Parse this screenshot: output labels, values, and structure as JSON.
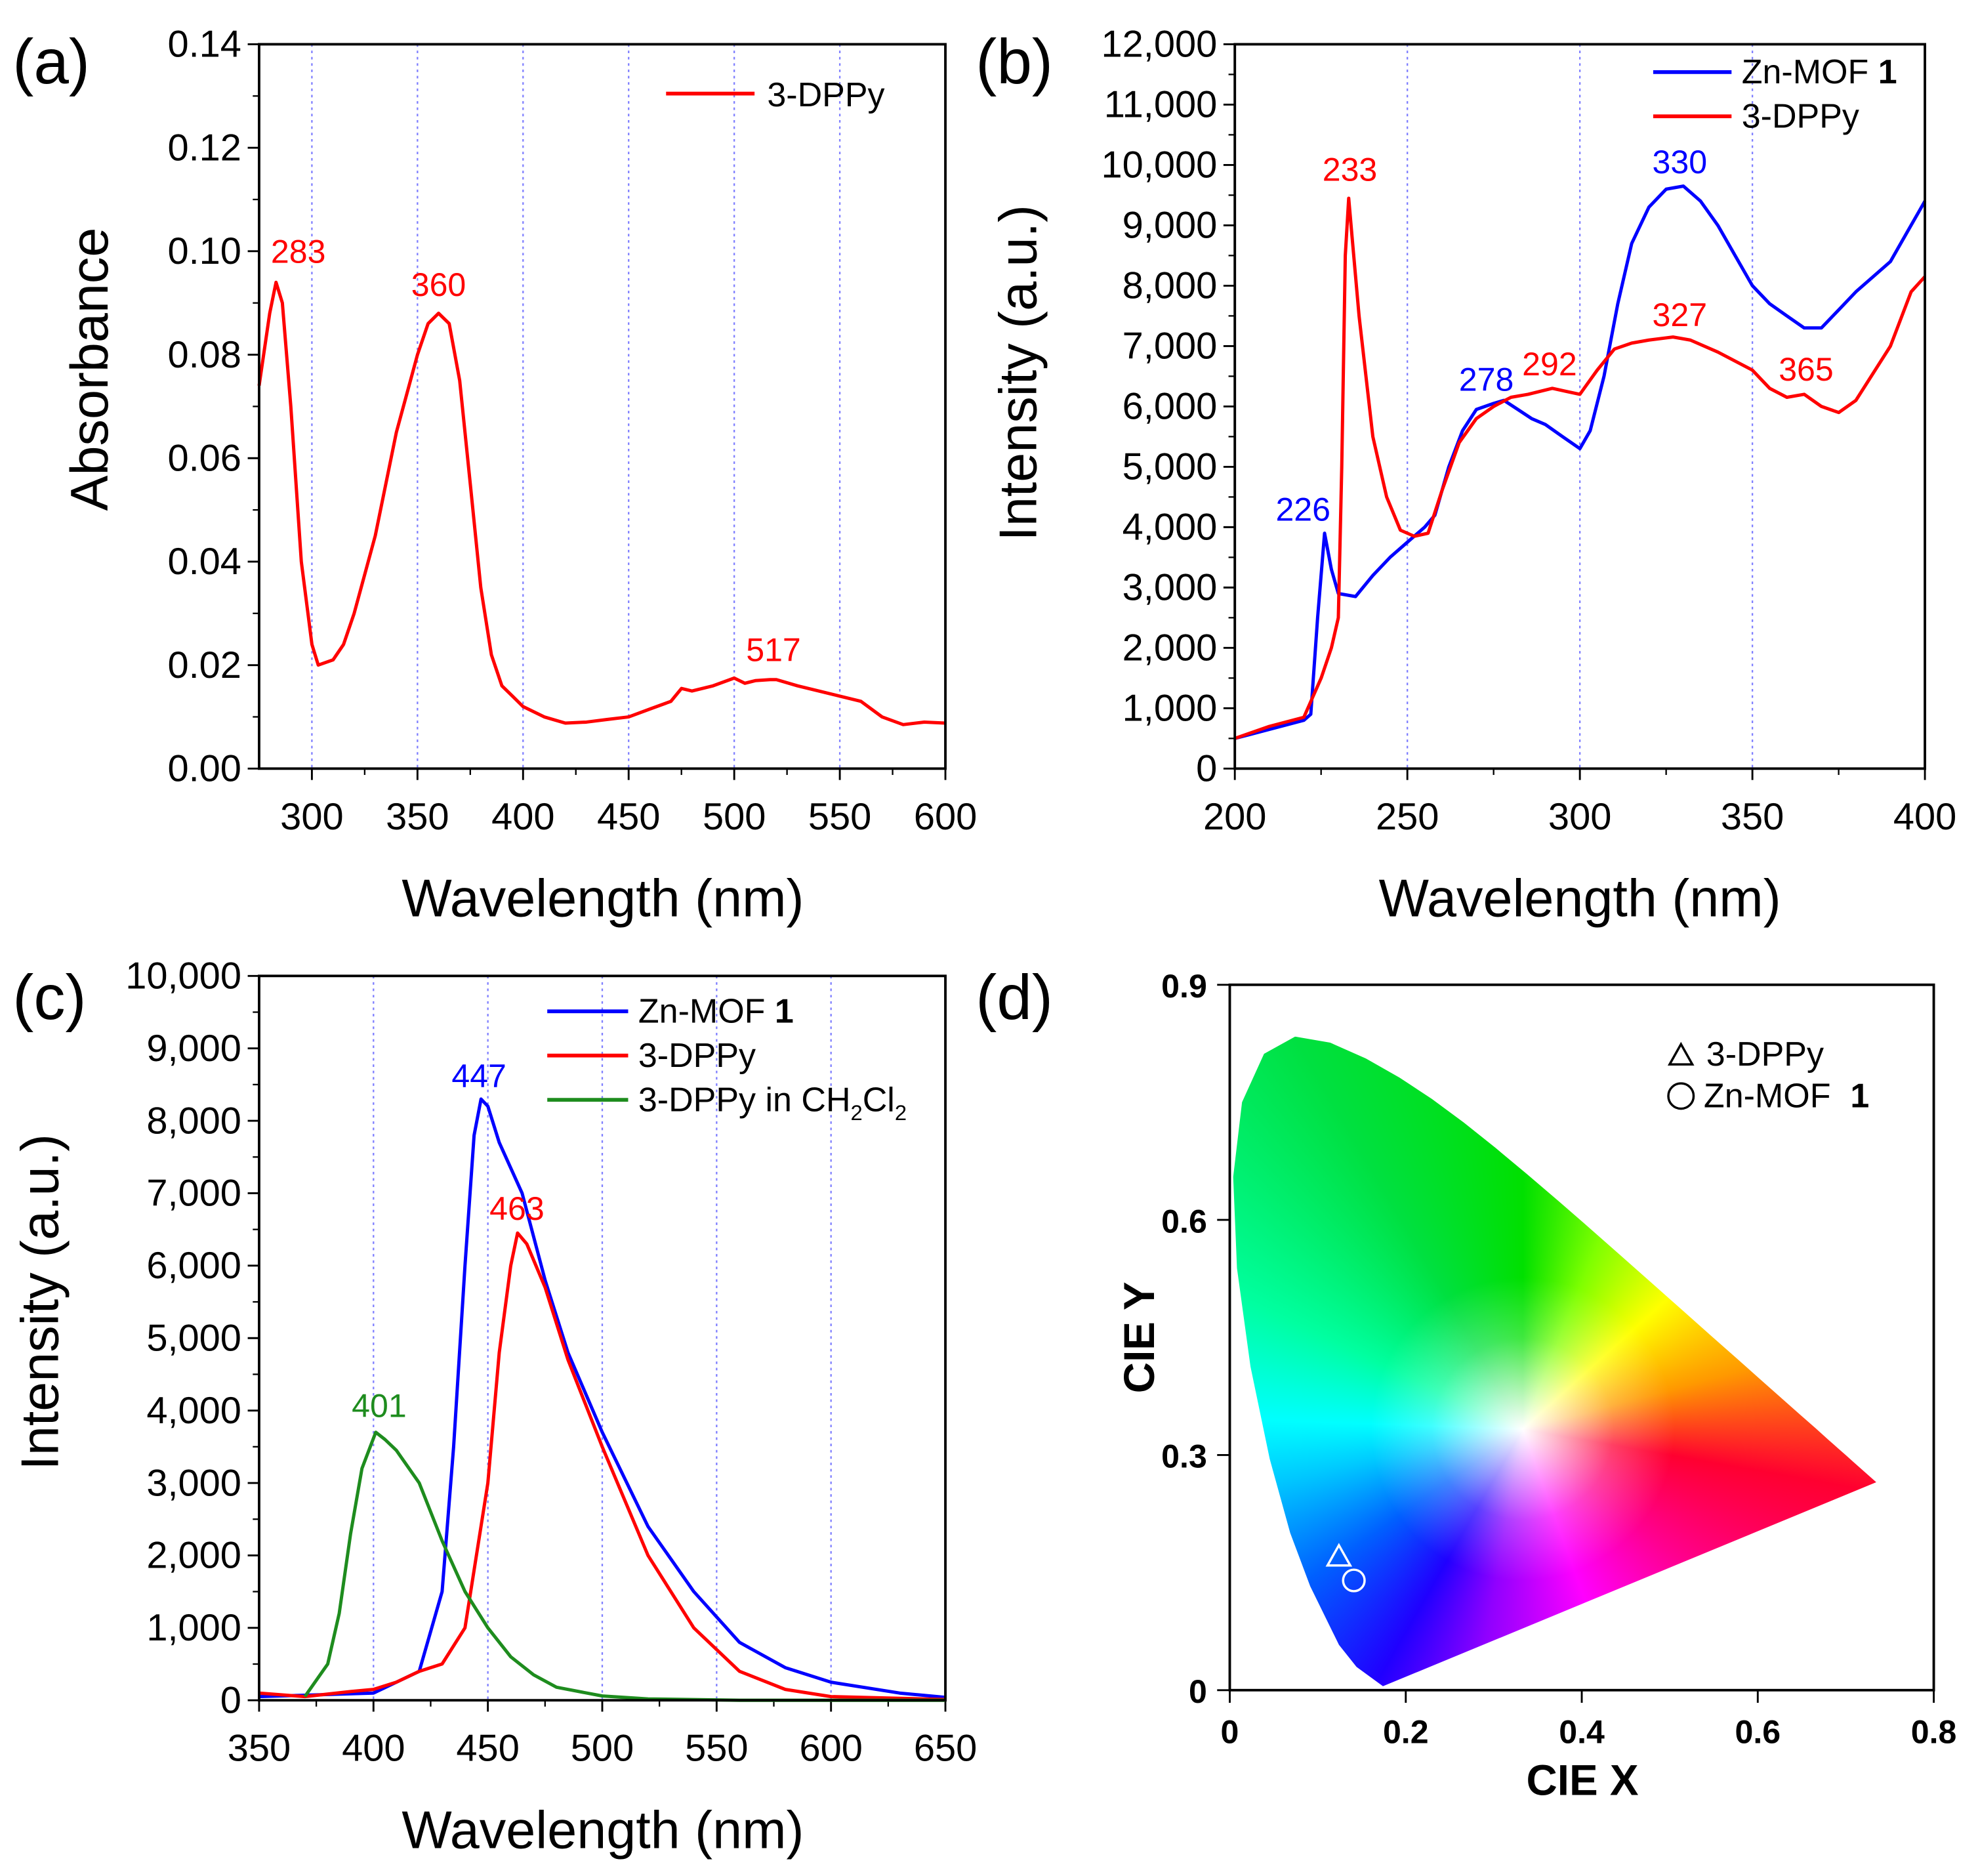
{
  "colors": {
    "red": "#ff0000",
    "blue": "#0000ff",
    "green": "#1e8c1e",
    "grid": "#8080ff"
  },
  "chart_data": [
    {
      "panel": "(a)",
      "type": "line",
      "xlabel": "Wavelength (nm)",
      "ylabel": "Absorbance",
      "xlim": [
        275,
        600
      ],
      "ylim": [
        0,
        0.14
      ],
      "xticks": [
        300,
        350,
        400,
        450,
        500,
        550,
        600
      ],
      "xtick_labels": [
        "300",
        "350",
        "400",
        "450",
        "500",
        "550",
        "600"
      ],
      "yticks": [
        0,
        0.02,
        0.04,
        0.06,
        0.08,
        0.1,
        0.12,
        0.14
      ],
      "ytick_labels": [
        "0.00",
        "0.02",
        "0.04",
        "0.06",
        "0.08",
        "0.10",
        "0.12",
        "0.14"
      ],
      "grid_x": [
        300,
        350,
        400,
        450,
        500,
        550
      ],
      "legend": "top-right",
      "series": [
        {
          "name": "3-DPPy",
          "color": "#ff0000",
          "x": [
            275,
            280,
            283,
            286,
            290,
            295,
            300,
            303,
            310,
            315,
            320,
            330,
            340,
            350,
            355,
            360,
            365,
            370,
            375,
            380,
            385,
            390,
            395,
            400,
            410,
            420,
            430,
            440,
            450,
            460,
            470,
            475,
            480,
            490,
            500,
            505,
            510,
            517,
            520,
            530,
            540,
            550,
            560,
            570,
            580,
            590,
            600
          ],
          "y": [
            0.074,
            0.088,
            0.094,
            0.09,
            0.07,
            0.04,
            0.024,
            0.02,
            0.021,
            0.024,
            0.03,
            0.045,
            0.065,
            0.08,
            0.086,
            0.088,
            0.086,
            0.075,
            0.055,
            0.035,
            0.022,
            0.016,
            0.014,
            0.012,
            0.01,
            0.0088,
            0.009,
            0.0095,
            0.01,
            0.0115,
            0.013,
            0.0155,
            0.015,
            0.016,
            0.0175,
            0.0165,
            0.017,
            0.0172,
            0.0172,
            0.016,
            0.015,
            0.014,
            0.013,
            0.01,
            0.0085,
            0.009,
            0.0088
          ]
        }
      ],
      "annotations": [
        {
          "text": "283",
          "color": "#ff0000"
        },
        {
          "text": "360",
          "color": "#ff0000"
        },
        {
          "text": "517",
          "color": "#ff0000"
        }
      ]
    },
    {
      "panel": "(b)",
      "type": "line",
      "xlabel": "Wavelength (nm)",
      "ylabel": "Intensity (a.u.)",
      "xlim": [
        200,
        400
      ],
      "ylim": [
        0,
        12000
      ],
      "xticks": [
        200,
        250,
        300,
        350,
        400
      ],
      "xtick_labels": [
        "200",
        "250",
        "300",
        "350",
        "400"
      ],
      "yticks": [
        0,
        1000,
        2000,
        3000,
        4000,
        5000,
        6000,
        7000,
        8000,
        9000,
        10000,
        11000,
        12000
      ],
      "ytick_labels": [
        "0",
        "1,000",
        "2,000",
        "3,000",
        "4,000",
        "5,000",
        "6,000",
        "7,000",
        "8,000",
        "9,000",
        "10,000",
        "11,000",
        "12,000"
      ],
      "grid_x": [
        250,
        300,
        350
      ],
      "legend": "top-right",
      "series": [
        {
          "name": "Zn-MOF 1",
          "name_main": "Zn-MOF ",
          "name_bold": "1",
          "color": "#0000ff",
          "x": [
            200,
            210,
            220,
            222,
            224,
            226,
            228,
            230,
            235,
            240,
            245,
            250,
            255,
            258,
            262,
            266,
            270,
            275,
            278,
            282,
            286,
            290,
            295,
            300,
            303,
            307,
            311,
            315,
            320,
            325,
            330,
            335,
            340,
            345,
            350,
            355,
            360,
            365,
            370,
            375,
            380,
            390,
            395,
            400
          ],
          "y": [
            500,
            650,
            800,
            900,
            2500,
            3900,
            3300,
            2900,
            2850,
            3200,
            3500,
            3750,
            4000,
            4200,
            5000,
            5600,
            5950,
            6050,
            6100,
            5950,
            5800,
            5700,
            5500,
            5300,
            5600,
            6500,
            7700,
            8700,
            9300,
            9600,
            9650,
            9400,
            9000,
            8500,
            8000,
            7700,
            7500,
            7300,
            7300,
            7600,
            7900,
            8400,
            8900,
            9400
          ]
        },
        {
          "name": "3-DPPy",
          "color": "#ff0000",
          "x": [
            200,
            210,
            220,
            225,
            228,
            230,
            231,
            232,
            233,
            234,
            236,
            240,
            244,
            248,
            252,
            256,
            260,
            265,
            270,
            275,
            280,
            285,
            292,
            296,
            300,
            305,
            310,
            315,
            320,
            327,
            332,
            340,
            350,
            355,
            360,
            365,
            370,
            375,
            380,
            390,
            396,
            400
          ],
          "y": [
            500,
            700,
            850,
            1500,
            2000,
            2500,
            5000,
            8500,
            9450,
            8800,
            7500,
            5500,
            4500,
            3950,
            3850,
            3900,
            4600,
            5400,
            5800,
            6000,
            6150,
            6200,
            6300,
            6250,
            6200,
            6600,
            6950,
            7050,
            7100,
            7150,
            7100,
            6900,
            6600,
            6300,
            6150,
            6200,
            6000,
            5900,
            6100,
            7000,
            7900,
            8150
          ]
        }
      ],
      "annotations": [
        {
          "text": "233",
          "color": "#ff0000"
        },
        {
          "text": "330",
          "color": "#0000ff"
        },
        {
          "text": "278",
          "color": "#0000ff"
        },
        {
          "text": "292",
          "color": "#ff0000"
        },
        {
          "text": "327",
          "color": "#ff0000"
        },
        {
          "text": "365",
          "color": "#ff0000"
        },
        {
          "text": "226",
          "color": "#0000ff"
        }
      ]
    },
    {
      "panel": "(c)",
      "type": "line",
      "xlabel": "Wavelength (nm)",
      "ylabel": "Intensity (a.u.)",
      "xlim": [
        350,
        650
      ],
      "ylim": [
        0,
        10000
      ],
      "xticks": [
        350,
        400,
        450,
        500,
        550,
        600,
        650
      ],
      "xtick_labels": [
        "350",
        "400",
        "450",
        "500",
        "550",
        "600",
        "650"
      ],
      "yticks": [
        0,
        1000,
        2000,
        3000,
        4000,
        5000,
        6000,
        7000,
        8000,
        9000,
        10000
      ],
      "ytick_labels": [
        "0",
        "1,000",
        "2,000",
        "3,000",
        "4,000",
        "5,000",
        "6,000",
        "7,000",
        "8,000",
        "9,000",
        "10,000"
      ],
      "grid_x": [
        400,
        450,
        500,
        550,
        600
      ],
      "legend": "top-right",
      "series": [
        {
          "name": "Zn-MOF 1",
          "name_main": "Zn-MOF ",
          "name_bold": "1",
          "color": "#0000ff",
          "x": [
            350,
            400,
            420,
            430,
            435,
            440,
            444,
            447,
            450,
            455,
            465,
            475,
            485,
            500,
            520,
            540,
            560,
            580,
            600,
            630,
            650
          ],
          "y": [
            50,
            100,
            400,
            1500,
            3500,
            6000,
            7800,
            8300,
            8200,
            7700,
            7000,
            5800,
            4800,
            3700,
            2400,
            1500,
            800,
            450,
            250,
            100,
            40
          ]
        },
        {
          "name": "3-DPPy",
          "color": "#ff0000",
          "x": [
            350,
            370,
            390,
            400,
            410,
            420,
            430,
            440,
            450,
            455,
            460,
            463,
            467,
            475,
            485,
            500,
            520,
            540,
            560,
            580,
            600,
            650
          ],
          "y": [
            100,
            50,
            120,
            150,
            250,
            400,
            500,
            1000,
            3000,
            4800,
            6000,
            6450,
            6300,
            5700,
            4700,
            3500,
            2000,
            1000,
            400,
            150,
            50,
            10
          ]
        },
        {
          "name": "3-DPPy in CH2Cl2",
          "name_main": "3-DPPy in CH",
          "sub1": "2",
          "name_mid": "Cl",
          "sub2": "2",
          "color": "#1e8c1e",
          "x": [
            370,
            380,
            385,
            390,
            395,
            401,
            405,
            410,
            420,
            430,
            440,
            450,
            460,
            470,
            480,
            500,
            520,
            560,
            650
          ],
          "y": [
            50,
            500,
            1200,
            2300,
            3200,
            3700,
            3600,
            3450,
            3000,
            2200,
            1500,
            1000,
            600,
            350,
            180,
            60,
            20,
            0,
            0
          ]
        }
      ],
      "annotations": [
        {
          "text": "447",
          "color": "#0000ff"
        },
        {
          "text": "463",
          "color": "#ff0000"
        },
        {
          "text": "401",
          "color": "#1e8c1e"
        }
      ]
    },
    {
      "panel": "(d)",
      "type": "scatter",
      "xlabel": "CIE X",
      "ylabel": "CIE Y",
      "xlim": [
        0,
        0.8
      ],
      "ylim": [
        0,
        0.9
      ],
      "xticks": [
        0,
        0.2,
        0.4,
        0.6,
        0.8
      ],
      "xtick_labels": [
        "0",
        "0.2",
        "0.4",
        "0.6",
        "0.8"
      ],
      "yticks": [
        0,
        0.3,
        0.6,
        0.9
      ],
      "ytick_labels": [
        "0",
        "0.3",
        "0.6",
        "0.9"
      ],
      "legend": "top-right",
      "series": [
        {
          "name": "3-DPPy",
          "marker": "triangle",
          "x": [
            0.124
          ],
          "y": [
            0.172
          ]
        },
        {
          "name": "Zn-MOF 1",
          "name_main": "Zn-MOF ",
          "name_bold": "1",
          "marker": "circle",
          "x": [
            0.141
          ],
          "y": [
            0.14
          ]
        }
      ],
      "spectral_locus": {
        "x": [
          0.1741,
          0.144,
          0.1241,
          0.0913,
          0.0687,
          0.0454,
          0.0235,
          0.0082,
          0.0039,
          0.0139,
          0.0389,
          0.0743,
          0.1142,
          0.1547,
          0.1929,
          0.2296,
          0.2658,
          0.3016,
          0.3373,
          0.3731,
          0.4087,
          0.4441,
          0.4788,
          0.5125,
          0.5448,
          0.5752,
          0.6029,
          0.627,
          0.6482,
          0.6658,
          0.6801,
          0.6915,
          0.7006,
          0.7079,
          0.7347
        ],
        "y": [
          0.005,
          0.0297,
          0.0578,
          0.1327,
          0.2007,
          0.295,
          0.4127,
          0.5384,
          0.6548,
          0.7502,
          0.812,
          0.8338,
          0.8262,
          0.8059,
          0.7816,
          0.7543,
          0.7243,
          0.6923,
          0.6589,
          0.6245,
          0.5896,
          0.5547,
          0.5202,
          0.4866,
          0.4544,
          0.4242,
          0.3965,
          0.3725,
          0.3514,
          0.334,
          0.3197,
          0.3083,
          0.2993,
          0.292,
          0.2653
        ]
      }
    }
  ]
}
